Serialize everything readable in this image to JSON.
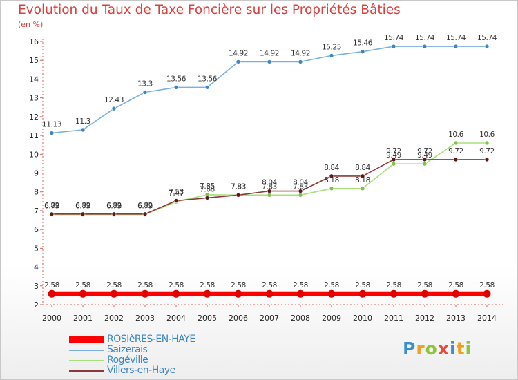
{
  "header": {
    "title": "Evolution du Taux de Taxe Foncière sur les Propriétés Bâties",
    "unit": "(en %)"
  },
  "logo": {
    "letters": [
      "P",
      "r",
      "o",
      "x",
      "i",
      "t",
      "i"
    ],
    "colors": [
      "#3a8fd0",
      "#f0a020",
      "#8cc63f",
      "#e84b3c",
      "#3a8fd0",
      "#f0a020",
      "#8cc63f"
    ]
  },
  "chart_data": {
    "type": "line",
    "title": "Evolution du Taux de Taxe Foncière sur les Propriétés Bâties",
    "ylabel": "(en %)",
    "xlabel": "",
    "ylim": [
      2,
      16
    ],
    "yticks": [
      "2",
      "3",
      "4",
      "5",
      "6",
      "7",
      "8",
      "9",
      "10",
      "11",
      "12",
      "13",
      "14",
      "15",
      "16"
    ],
    "categories": [
      "2000",
      "2001",
      "2002",
      "2003",
      "2004",
      "2005",
      "2006",
      "2007",
      "2008",
      "2009",
      "2010",
      "2011",
      "2012",
      "2013",
      "2014"
    ],
    "grid": false,
    "series": [
      {
        "name": "ROSIèRES-EN-HAYE",
        "color": "#ff0000",
        "marker_color": "#e00000",
        "thick": true,
        "values": [
          2.58,
          2.58,
          2.58,
          2.58,
          2.58,
          2.58,
          2.58,
          2.58,
          2.58,
          2.58,
          2.58,
          2.58,
          2.58,
          2.58,
          2.58
        ],
        "labels": [
          "2.58",
          "2.58",
          "2.58",
          "2.58",
          "2.58",
          "2.58",
          "2.58",
          "2.58",
          "2.58",
          "2.58",
          "2.58",
          "2.58",
          "2.58",
          "2.58",
          "2.58"
        ]
      },
      {
        "name": "Saizerais",
        "color": "#7ab0dc",
        "marker_color": "#3b85c4",
        "values": [
          11.13,
          11.3,
          12.43,
          13.3,
          13.56,
          13.56,
          14.92,
          14.92,
          14.92,
          15.25,
          15.46,
          15.74,
          15.74,
          15.74,
          15.74
        ],
        "labels": [
          "11.13",
          "11.3",
          "12.43",
          "13.3",
          "13.56",
          "13.56",
          "14.92",
          "14.92",
          "14.92",
          "15.25",
          "15.46",
          "15.74",
          "15.74",
          "15.74",
          "15.74"
        ]
      },
      {
        "name": "Rogéville",
        "color": "#a6e07a",
        "marker_color": "#7ec34a",
        "values": [
          6.79,
          6.79,
          6.79,
          6.79,
          7.47,
          7.85,
          7.83,
          7.83,
          7.83,
          8.18,
          8.18,
          9.49,
          9.49,
          10.6,
          10.6
        ],
        "labels": [
          "6.79",
          "6.79",
          "6.79",
          "6.79",
          "7.47",
          "7.85",
          "7.83",
          "7.83",
          "7.83",
          "8.18",
          "8.18",
          "9.49",
          "9.49",
          "10.6",
          "10.6"
        ]
      },
      {
        "name": "Villers-en-Haye",
        "color": "#8b3a3a",
        "marker_color": "#5e1616",
        "values": [
          6.82,
          6.82,
          6.82,
          6.82,
          7.53,
          7.68,
          7.83,
          8.04,
          8.04,
          8.84,
          8.84,
          9.72,
          9.72,
          9.72,
          9.72
        ],
        "labels": [
          "6.82",
          "6.82",
          "6.82",
          "6.82",
          "7.53",
          "7.68",
          "7.83",
          "8.04",
          "8.04",
          "8.84",
          "8.84",
          "9.72",
          "9.72",
          "9.72",
          "9.72"
        ]
      }
    ]
  }
}
